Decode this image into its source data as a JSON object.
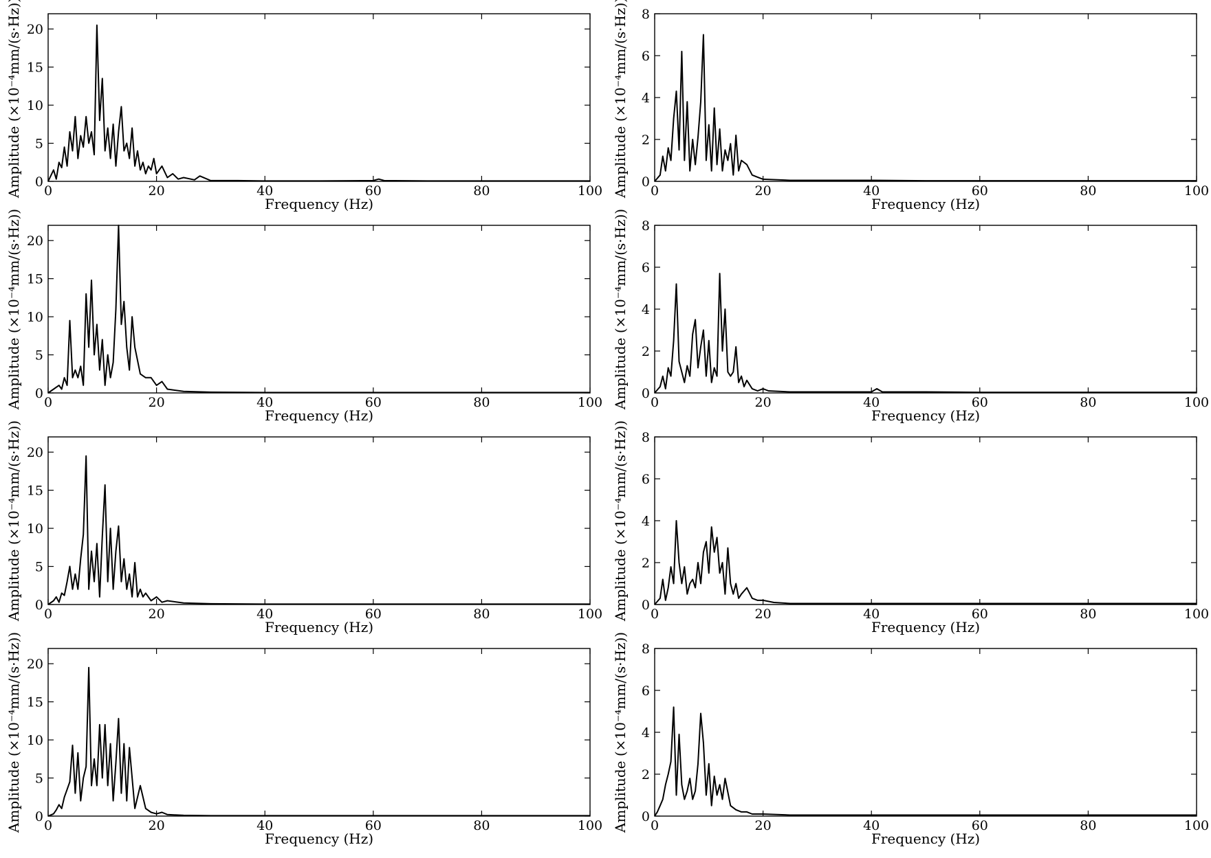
{
  "chart_data": [
    {
      "type": "line",
      "xlabel": "Frequency (Hz)",
      "ylabel": "Amplitude (×10⁻⁴mm/(s·Hz))",
      "xlim": [
        0,
        100
      ],
      "ylim": [
        0,
        22
      ],
      "xticks": [
        0,
        20,
        40,
        60,
        80,
        100
      ],
      "yticks": [
        0,
        5,
        10,
        15,
        20
      ],
      "x": [
        0,
        1,
        1.5,
        2,
        2.5,
        3,
        3.5,
        4,
        4.5,
        5,
        5.5,
        6,
        6.5,
        7,
        7.5,
        8,
        8.5,
        9,
        9.5,
        10,
        10.5,
        11,
        11.5,
        12,
        12.5,
        13,
        13.5,
        14,
        14.5,
        15,
        15.5,
        16,
        16.5,
        17,
        17.5,
        18,
        18.5,
        19,
        19.5,
        20,
        21,
        22,
        23,
        24,
        25,
        27,
        28,
        30,
        35,
        40,
        50,
        60,
        61,
        62,
        70,
        80,
        90,
        100
      ],
      "y": [
        0,
        1.5,
        0.3,
        2.5,
        1.8,
        4.5,
        2,
        6.5,
        4,
        8.5,
        3,
        6,
        4.5,
        8.5,
        5,
        6.5,
        3.5,
        20.5,
        8,
        13.5,
        4,
        7,
        3,
        7.5,
        2,
        6.5,
        9.8,
        4,
        5,
        3,
        7,
        2,
        4,
        1.5,
        2.5,
        1,
        2,
        1.5,
        3,
        1,
        2,
        0.5,
        1,
        0.3,
        0.5,
        0.2,
        0.7,
        0.1,
        0.1,
        0.05,
        0.05,
        0.1,
        0.3,
        0.1,
        0.05,
        0.05,
        0.05,
        0.05
      ]
    },
    {
      "type": "line",
      "xlabel": "Frequency (Hz)",
      "ylabel": "Amplitude (×10⁻⁴mm/(s·Hz))",
      "xlim": [
        0,
        100
      ],
      "ylim": [
        0,
        8
      ],
      "xticks": [
        0,
        20,
        40,
        60,
        80,
        100
      ],
      "yticks": [
        0,
        2,
        4,
        6,
        8
      ],
      "x": [
        0,
        1,
        1.5,
        2,
        2.5,
        3,
        3.5,
        4,
        4.5,
        5,
        5.5,
        6,
        6.5,
        7,
        7.5,
        8,
        8.5,
        9,
        9.5,
        10,
        10.5,
        11,
        11.5,
        12,
        12.5,
        13,
        13.5,
        14,
        14.5,
        15,
        15.5,
        16,
        17,
        18,
        19,
        20,
        25,
        30,
        35,
        40,
        50,
        60,
        70,
        80,
        90,
        100
      ],
      "y": [
        0,
        0.3,
        1.2,
        0.5,
        1.6,
        1,
        3,
        4.3,
        1.5,
        6.2,
        1,
        3.8,
        0.5,
        2,
        0.8,
        2.1,
        3.8,
        7,
        1,
        2.7,
        0.5,
        3.5,
        0.8,
        2.5,
        0.5,
        1.5,
        1,
        1.8,
        0.3,
        2.2,
        0.5,
        1,
        0.8,
        0.3,
        0.2,
        0.1,
        0.05,
        0.05,
        0.05,
        0.05,
        0.03,
        0.03,
        0.03,
        0.03,
        0.03,
        0.03
      ]
    },
    {
      "type": "line",
      "xlabel": "Frequency (Hz)",
      "ylabel": "Amplitude (×10⁻⁴mm/(s·Hz))",
      "xlim": [
        0,
        100
      ],
      "ylim": [
        0,
        22
      ],
      "xticks": [
        0,
        20,
        40,
        60,
        80,
        100
      ],
      "yticks": [
        0,
        5,
        10,
        15,
        20
      ],
      "x": [
        0,
        1,
        2,
        2.5,
        3,
        3.5,
        4,
        4.5,
        5,
        5.5,
        6,
        6.5,
        7,
        7.5,
        8,
        8.5,
        9,
        9.5,
        10,
        10.5,
        11,
        11.5,
        12,
        12.5,
        13,
        13.5,
        14,
        14.5,
        15,
        15.5,
        16,
        17,
        18,
        19,
        20,
        21,
        22,
        25,
        30,
        40,
        50,
        60,
        70,
        80,
        90,
        100
      ],
      "y": [
        0,
        0.5,
        1,
        0.5,
        2,
        1,
        9.5,
        2,
        3,
        2,
        3.5,
        1,
        13,
        6,
        14.8,
        5,
        9,
        3,
        7,
        1,
        5,
        2,
        4,
        11,
        22,
        9,
        12,
        6,
        3,
        10,
        6,
        2.5,
        2,
        2,
        1,
        1.5,
        0.5,
        0.2,
        0.1,
        0.05,
        0.05,
        0.05,
        0.05,
        0.05,
        0.05,
        0.05
      ]
    },
    {
      "type": "line",
      "xlabel": "Frequency (Hz)",
      "ylabel": "Amplitude (×10⁻⁴mm/(s·Hz))",
      "xlim": [
        0,
        100
      ],
      "ylim": [
        0,
        8
      ],
      "xticks": [
        0,
        20,
        40,
        60,
        80,
        100
      ],
      "yticks": [
        0,
        2,
        4,
        6,
        8
      ],
      "x": [
        0,
        1,
        1.5,
        2,
        2.5,
        3,
        3.5,
        4,
        4.5,
        5,
        5.5,
        6,
        6.5,
        7,
        7.5,
        8,
        8.5,
        9,
        9.5,
        10,
        10.5,
        11,
        11.5,
        12,
        12.5,
        13,
        13.5,
        14,
        14.5,
        15,
        15.5,
        16,
        16.5,
        17,
        18,
        19,
        20,
        21,
        25,
        30,
        40,
        41,
        42,
        50,
        60,
        70,
        80,
        90,
        100
      ],
      "y": [
        0,
        0.3,
        0.8,
        0.2,
        1.2,
        0.8,
        2.5,
        5.2,
        1.5,
        1,
        0.5,
        1.3,
        0.8,
        2.8,
        3.5,
        1.2,
        2.2,
        3,
        0.8,
        2.5,
        0.5,
        1.2,
        0.8,
        5.7,
        2,
        4,
        1,
        0.8,
        1,
        2.2,
        0.5,
        0.8,
        0.3,
        0.6,
        0.2,
        0.1,
        0.2,
        0.1,
        0.05,
        0.05,
        0.05,
        0.2,
        0.05,
        0.05,
        0.03,
        0.03,
        0.03,
        0.03,
        0.03
      ]
    },
    {
      "type": "line",
      "xlabel": "Frequency (Hz)",
      "ylabel": "Amplitude (×10⁻⁴mm/(s·Hz))",
      "xlim": [
        0,
        100
      ],
      "ylim": [
        0,
        22
      ],
      "xticks": [
        0,
        20,
        40,
        60,
        80,
        100
      ],
      "yticks": [
        0,
        5,
        10,
        15,
        20
      ],
      "x": [
        0,
        1,
        1.5,
        2,
        2.5,
        3,
        3.5,
        4,
        4.5,
        5,
        5.5,
        6,
        6.5,
        7,
        7.5,
        8,
        8.5,
        9,
        9.5,
        10,
        10.5,
        11,
        11.5,
        12,
        12.5,
        13,
        13.5,
        14,
        14.5,
        15,
        15.5,
        16,
        16.5,
        17,
        17.5,
        18,
        19,
        20,
        21,
        22,
        25,
        30,
        40,
        50,
        60,
        70,
        80,
        90,
        100
      ],
      "y": [
        0,
        0.5,
        1,
        0.3,
        1.5,
        1.2,
        3,
        5,
        2,
        4,
        2,
        6,
        9.2,
        19.5,
        2,
        7,
        3,
        8,
        1,
        9,
        15.7,
        3,
        10,
        2,
        7,
        10.3,
        3,
        6,
        2,
        4,
        1,
        5.5,
        1,
        2,
        1,
        1.5,
        0.5,
        1,
        0.3,
        0.5,
        0.2,
        0.1,
        0.05,
        0.05,
        0.05,
        0.05,
        0.05,
        0.05,
        0.05
      ]
    },
    {
      "type": "line",
      "xlabel": "Frequency (Hz)",
      "ylabel": "Amplitude (×10⁻⁴mm/(s·Hz))",
      "xlim": [
        0,
        100
      ],
      "ylim": [
        0,
        8
      ],
      "xticks": [
        0,
        20,
        40,
        60,
        80,
        100
      ],
      "yticks": [
        0,
        2,
        4,
        6,
        8
      ],
      "x": [
        0,
        1,
        1.5,
        2,
        2.5,
        3,
        3.5,
        4,
        4.5,
        5,
        5.5,
        6,
        6.5,
        7,
        7.5,
        8,
        8.5,
        9,
        9.5,
        10,
        10.5,
        11,
        11.5,
        12,
        12.5,
        13,
        13.5,
        14,
        14.5,
        15,
        15.5,
        16,
        17,
        18,
        19,
        20,
        22,
        25,
        30,
        40,
        50,
        60,
        70,
        80,
        90,
        100
      ],
      "y": [
        0,
        0.3,
        1.2,
        0.2,
        0.8,
        1.8,
        1,
        4,
        2,
        1,
        1.8,
        0.5,
        1,
        1.2,
        0.8,
        2,
        1,
        2.5,
        3,
        1.5,
        3.7,
        2.5,
        3.2,
        1.5,
        2,
        0.5,
        2.7,
        1,
        0.5,
        1,
        0.3,
        0.5,
        0.8,
        0.3,
        0.2,
        0.2,
        0.1,
        0.05,
        0.05,
        0.05,
        0.05,
        0.05,
        0.05,
        0.05,
        0.05,
        0.05
      ]
    },
    {
      "type": "line",
      "xlabel": "Frequency (Hz)",
      "ylabel": "Amplitude (×10⁻⁴mm/(s·Hz))",
      "xlim": [
        0,
        100
      ],
      "ylim": [
        0,
        22
      ],
      "xticks": [
        0,
        20,
        40,
        60,
        80,
        100
      ],
      "yticks": [
        0,
        5,
        10,
        15,
        20
      ],
      "x": [
        0,
        1,
        1.5,
        2,
        2.5,
        3,
        3.5,
        4,
        4.5,
        5,
        5.5,
        6,
        6.5,
        7,
        7.5,
        8,
        8.5,
        9,
        9.5,
        10,
        10.5,
        11,
        11.5,
        12,
        12.5,
        13,
        13.5,
        14,
        14.5,
        15,
        16,
        17,
        18,
        19,
        20,
        21,
        22,
        25,
        30,
        40,
        50,
        60,
        70,
        80,
        90,
        100
      ],
      "y": [
        0,
        0.3,
        0.8,
        1.5,
        1,
        2.5,
        3.5,
        4.5,
        9.3,
        3,
        8.3,
        2,
        5,
        6.5,
        19.5,
        4,
        7.5,
        4,
        12,
        5,
        12,
        4,
        9.5,
        2,
        7,
        12.8,
        3,
        9.5,
        2,
        9,
        1,
        4,
        1,
        0.5,
        0.3,
        0.5,
        0.2,
        0.1,
        0.05,
        0.05,
        0.05,
        0.05,
        0.05,
        0.05,
        0.05,
        0.05
      ]
    },
    {
      "type": "line",
      "xlabel": "Frequency (Hz)",
      "ylabel": "Amplitude (×10⁻⁴mm/(s·Hz))",
      "xlim": [
        0,
        100
      ],
      "ylim": [
        0,
        8
      ],
      "xticks": [
        0,
        20,
        40,
        60,
        80,
        100
      ],
      "yticks": [
        0,
        2,
        4,
        6,
        8
      ],
      "x": [
        0,
        0.5,
        1,
        1.5,
        2,
        2.5,
        3,
        3.5,
        4,
        4.5,
        5,
        5.5,
        6,
        6.5,
        7,
        7.5,
        8,
        8.5,
        9,
        9.5,
        10,
        10.5,
        11,
        11.5,
        12,
        12.5,
        13,
        14,
        15,
        16,
        17,
        18,
        20,
        25,
        30,
        40,
        50,
        60,
        70,
        80,
        90,
        100
      ],
      "y": [
        0,
        0.2,
        0.5,
        0.8,
        1.5,
        2,
        2.6,
        5.2,
        1,
        3.9,
        1.5,
        0.8,
        1.2,
        1.8,
        0.8,
        1.2,
        2.5,
        4.9,
        3.5,
        1,
        2.5,
        0.5,
        1.9,
        1,
        1.5,
        0.8,
        1.8,
        0.5,
        0.3,
        0.2,
        0.2,
        0.1,
        0.1,
        0.05,
        0.05,
        0.05,
        0.05,
        0.05,
        0.05,
        0.05,
        0.05,
        0.05
      ]
    }
  ]
}
